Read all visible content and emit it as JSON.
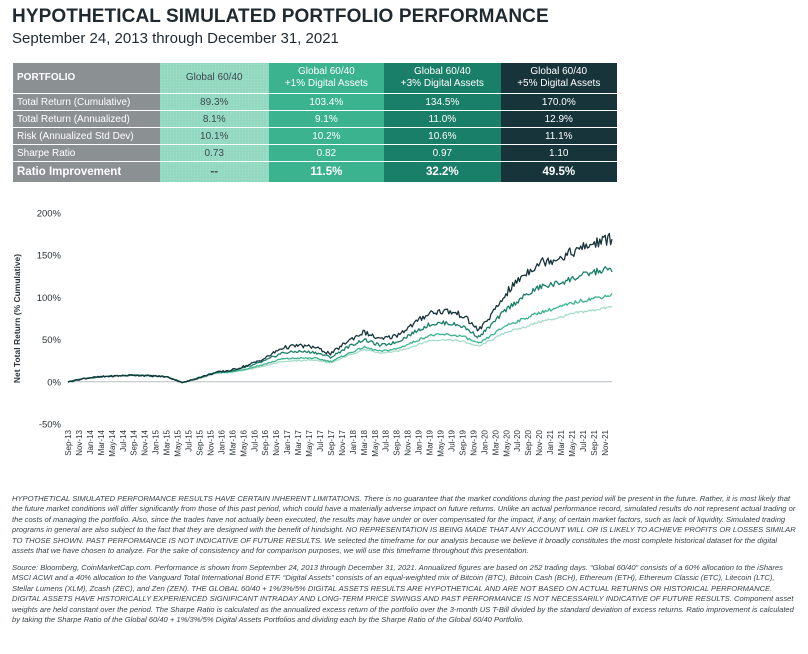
{
  "header": {
    "title": "HYPOTHETICAL SIMULATED PORTFOLIO PERFORMANCE",
    "subtitle": "September 24, 2013 through December 31, 2021"
  },
  "table": {
    "header": {
      "portfolio": "PORTFOLIO",
      "col1": "Global 60/40",
      "col2_line1": "Global 60/40",
      "col2_line2": "+1% Digital Assets",
      "col3_line1": "Global 60/40",
      "col3_line2": "+3% Digital Assets",
      "col4_line1": "Global 60/40",
      "col4_line2": "+5% Digital Assets"
    },
    "rows": [
      {
        "label": "Total Return (Cumulative)",
        "v1": "89.3%",
        "v2": "103.4%",
        "v3": "134.5%",
        "v4": "170.0%"
      },
      {
        "label": "Total Return (Annualized)",
        "v1": "8.1%",
        "v2": "9.1%",
        "v3": "11.0%",
        "v4": "12.9%"
      },
      {
        "label": "Risk (Annualized Std Dev)",
        "v1": "10.1%",
        "v2": "10.2%",
        "v3": "10.6%",
        "v4": "11.1%"
      },
      {
        "label": "Sharpe Ratio",
        "v1": "0.73",
        "v2": "0.82",
        "v3": "0.97",
        "v4": "1.10"
      },
      {
        "label": "Ratio Improvement",
        "v1": "--",
        "v2": "11.5%",
        "v3": "32.2%",
        "v4": "49.5%"
      }
    ]
  },
  "chart_data": {
    "type": "line",
    "ylabel": "Net Total Return (% Cumulative)",
    "xlabel": "",
    "ylim": [
      -50,
      200
    ],
    "yticks": [
      "200%",
      "150%",
      "100%",
      "50%",
      "0%",
      "-50%"
    ],
    "ytick_values": [
      200,
      150,
      100,
      50,
      0,
      -50
    ],
    "xticks": [
      "Sep-13",
      "Jan-14",
      "May-14",
      "Sep-14",
      "Jan-15",
      "May-15",
      "Sep-15",
      "Jan-16",
      "May-16",
      "Sep-16",
      "Jan-17",
      "May-17",
      "Sep-17",
      "Jan-18",
      "May-18",
      "Sep-18",
      "Jan-19",
      "May-19",
      "Sep-19",
      "Jan-20",
      "May-20",
      "Sep-20",
      "Jan-21",
      "May-21",
      "Sep-21",
      "Nov-21",
      "Nov-13",
      "Mar-14",
      "Jul-14",
      "Nov-14",
      "Mar-15",
      "Jul-15",
      "Nov-15",
      "Mar-16",
      "Jul-16",
      "Nov-16",
      "Mar-17",
      "Jul-17",
      "Nov-17",
      "Mar-18",
      "Jul-18",
      "Nov-18",
      "Mar-19",
      "Jul-19",
      "Nov-19",
      "Mar-20",
      "Jul-20",
      "Nov-20",
      "Mar-21",
      "Jul-21"
    ],
    "xtick_order": [
      "Sep-13",
      "Nov-13",
      "Jan-14",
      "Mar-14",
      "May-14",
      "Jul-14",
      "Sep-14",
      "Nov-14",
      "Jan-15",
      "Mar-15",
      "May-15",
      "Jul-15",
      "Sep-15",
      "Nov-15",
      "Jan-16",
      "Mar-16",
      "May-16",
      "Jul-16",
      "Sep-16",
      "Nov-16",
      "Jan-17",
      "Mar-17",
      "May-17",
      "Jul-17",
      "Sep-17",
      "Nov-17",
      "Jan-18",
      "Mar-18",
      "May-18",
      "Jul-18",
      "Sep-18",
      "Nov-18",
      "Jan-19",
      "Mar-19",
      "May-19",
      "Jul-19",
      "Sep-19",
      "Nov-19",
      "Jan-20",
      "Mar-20",
      "May-20",
      "Jul-20",
      "Sep-20",
      "Nov-20",
      "Jan-21",
      "Mar-21",
      "May-21",
      "Jul-21",
      "Sep-21",
      "Nov-21"
    ],
    "x_months_since_start": [
      0,
      3,
      6,
      9,
      12,
      15,
      18,
      21,
      24,
      27,
      30,
      33,
      36,
      39,
      42,
      45,
      48,
      51,
      54,
      57,
      60,
      63,
      66,
      69,
      72,
      75,
      78,
      80,
      83,
      86,
      89,
      93,
      96,
      99.3
    ],
    "grid": false,
    "legend": "none",
    "series": [
      {
        "color": "#a9dcc8",
        "values": [
          0,
          4,
          6,
          7,
          8,
          7,
          6,
          -1,
          4,
          10,
          11,
          15,
          19,
          24,
          25,
          26,
          22,
          31,
          38,
          34,
          36,
          42,
          49,
          50,
          48,
          42,
          52,
          59,
          64,
          71,
          75,
          82,
          85,
          89
        ]
      },
      {
        "color": "#3bb38f",
        "values": [
          0,
          4,
          6,
          7,
          8,
          7,
          6,
          -1,
          5,
          11,
          12,
          16,
          21,
          27,
          28,
          28,
          24,
          33,
          41,
          36,
          39,
          47,
          55,
          56,
          54,
          45,
          58,
          67,
          74,
          82,
          87,
          95,
          99,
          103
        ]
      },
      {
        "color": "#1a7f68",
        "values": [
          0,
          4,
          6,
          7,
          8,
          7,
          6,
          -1,
          5,
          11,
          13,
          18,
          25,
          34,
          36,
          35,
          29,
          41,
          50,
          43,
          47,
          58,
          68,
          70,
          66,
          53,
          72,
          86,
          100,
          112,
          116,
          124,
          130,
          134
        ]
      },
      {
        "color": "#16343a",
        "values": [
          0,
          4,
          6,
          7,
          8,
          7,
          6,
          -1,
          5,
          11,
          14,
          20,
          28,
          40,
          43,
          41,
          33,
          48,
          59,
          50,
          55,
          68,
          82,
          84,
          79,
          61,
          85,
          105,
          126,
          141,
          146,
          156,
          164,
          170
        ]
      }
    ]
  },
  "notes": {
    "disclaimer": "HYPOTHETICAL SIMULATED PERFORMANCE RESULTS HAVE CERTAIN INHERENT LIMITATIONS. There is no guarantee that the market conditions during the past period will be present in the future. Rather, it is most likely that the future market conditions will differ significantly from those of this past period, which could have a materially adverse impact on future returns. Unlike an actual performance record, simulated results do not represent actual trading or the costs of managing the portfolio. Also, since the trades have not actually been executed, the results may have under or over compensated for the impact, if any, of certain market factors, such as lack of liquidity. Simulated trading programs in general are also subject to the fact that they are designed with the benefit of hindsight. NO REPRESENTATION IS BEING MADE THAT ANY ACCOUNT WILL OR IS LIKELY TO ACHIEVE PROFITS OR LOSSES SIMILAR TO THOSE SHOWN. PAST PERFORMANCE IS NOT INDICATIVE OF FUTURE RESULTS. We selected the timeframe for our analysis because we believe it broadly constitutes the most complete historical dataset for the digital assets that we have chosen to analyze. For the sake of consistency and for comparison purposes, we will use this timeframe throughout this presentation.",
    "source": "Source: Bloomberg, CoinMarketCap.com. Performance is shown from September 24, 2013 through December 31, 2021. Annualized figures are based on 252 trading days. “Global 60/40” consists of a 60% allocation to the iShares MSCI ACWI and a 40% allocation to the Vanguard Total International Bond ETF. “Digital Assets” consists of an equal-weighted mix of Bitcoin (BTC), Bitcoin Cash (BCH), Ethereum (ETH), Ethereum Classic (ETC), Litecoin (LTC), Stellar Lumens (XLM), Zcash (ZEC), and Zen (ZEN). THE GLOBAL 60/40 + 1%/3%/5% DIGITAL ASSETS RESULTS ARE HYPOTHETICAL AND ARE NOT BASED ON ACTUAL RETURNS OR HISTORICAL PERFORMANCE. DIGITAL ASSETS HAVE HISTORICALLY EXPERIENCED SIGNIFICANT INTRADAY AND LONG-TERM PRICE SWINGS AND PAST PERFORMANCE IS NOT NECESSARILY INDICATIVE OF FUTURE RESULTS. Component asset weights are held constant over the period. The Sharpe Ratio is calculated as the annualized excess return of the portfolio over the 3-month US T-Bill divided by the standard deviation of excess returns. Ratio improvement is calculated by taking the Sharpe Ratio of the Global 60/40 + 1%/3%/5% Digital Assets Portfolios and dividing each by the Sharpe Ratio of the Global 60/40 Portfolio."
  }
}
